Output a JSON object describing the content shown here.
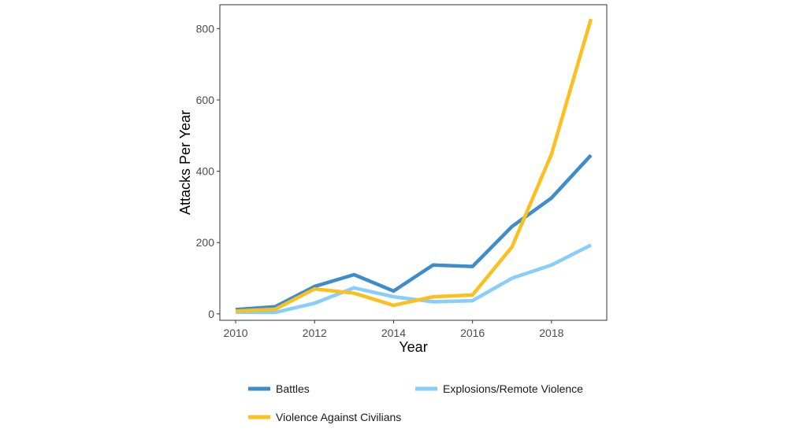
{
  "chart_data": {
    "type": "line",
    "title": "",
    "xlabel": "Year",
    "ylabel": "Attacks Per Year",
    "xlim": [
      2009.6,
      2019.4
    ],
    "ylim": [
      -18,
      867
    ],
    "x_ticks": [
      2010,
      2012,
      2014,
      2016,
      2018
    ],
    "y_ticks": [
      0,
      200,
      400,
      600,
      800
    ],
    "grid": false,
    "legend_position": "bottom",
    "x": [
      2010,
      2011,
      2012,
      2013,
      2014,
      2015,
      2016,
      2017,
      2018,
      2019
    ],
    "series": [
      {
        "name": "Battles",
        "color": "#3f8ccb",
        "values": [
          12,
          20,
          77,
          110,
          64,
          137,
          133,
          245,
          325,
          445
        ]
      },
      {
        "name": "Explosions/Remote Violence",
        "color": "#87cefa",
        "values": [
          5,
          4,
          30,
          73,
          48,
          34,
          37,
          100,
          137,
          193
        ]
      },
      {
        "name": "Violence Against Civilians",
        "color": "#fbbf1e",
        "values": [
          8,
          13,
          70,
          58,
          24,
          48,
          53,
          188,
          448,
          827
        ]
      }
    ]
  }
}
